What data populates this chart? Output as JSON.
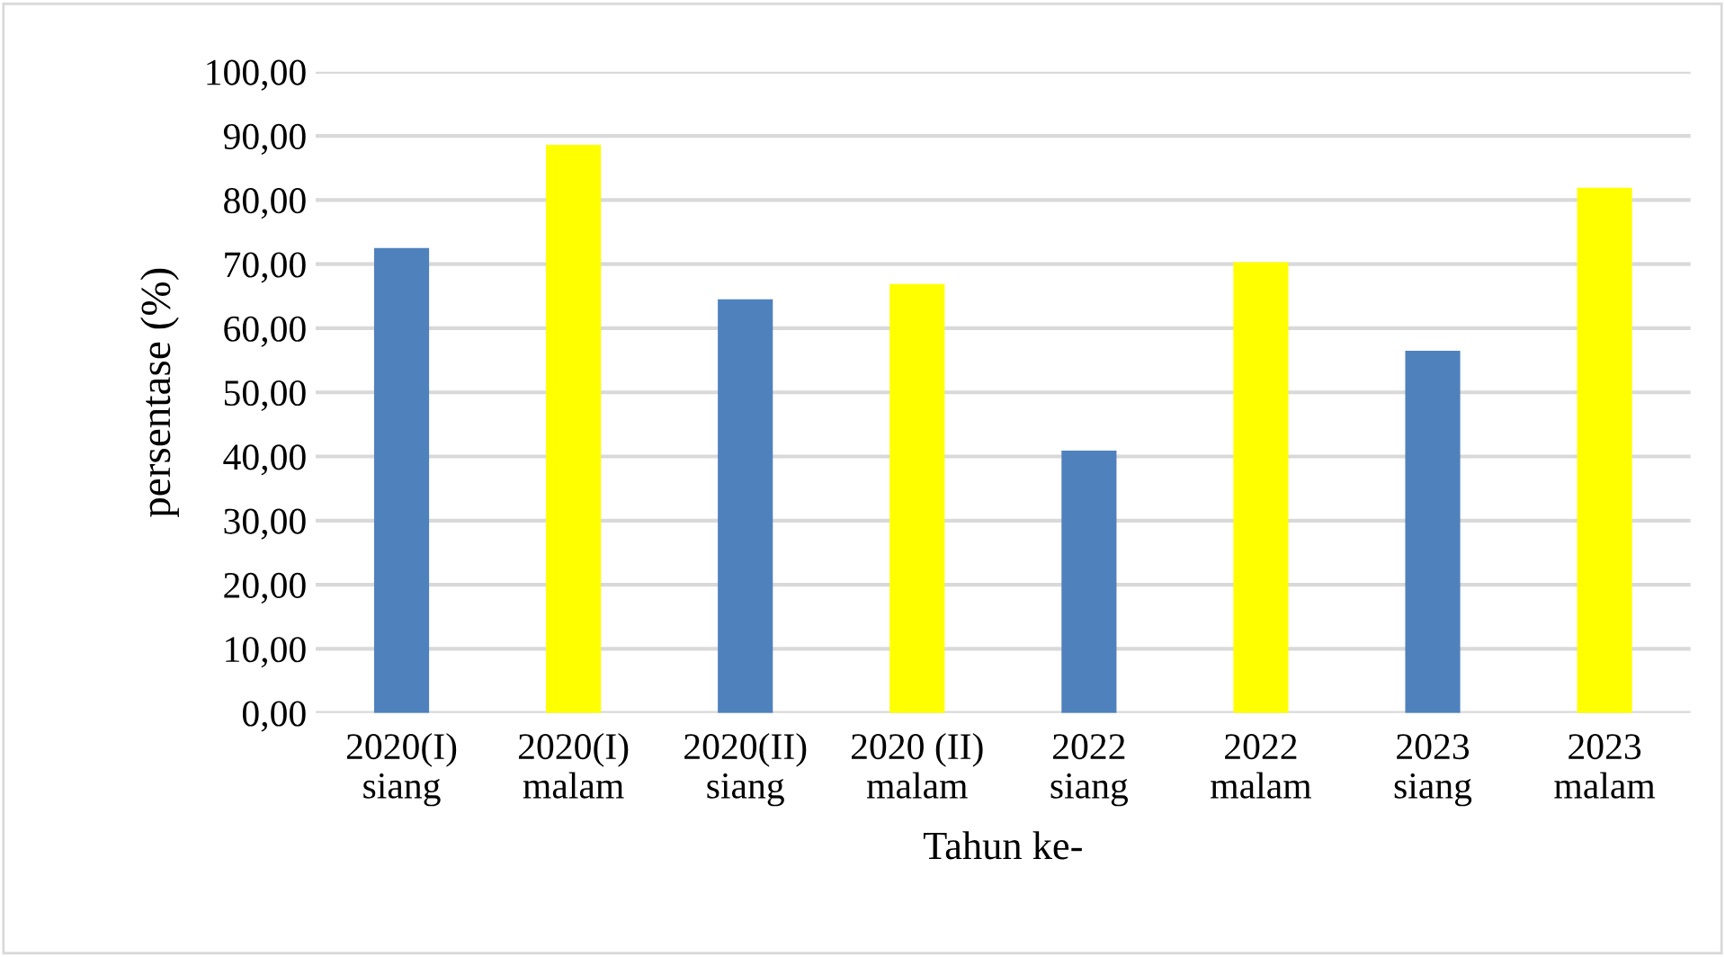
{
  "chart_data": {
    "type": "bar",
    "xlabel": "Tahun ke-",
    "ylabel": "persentase (%)",
    "categories": [
      "2020(I)\nsiang",
      "2020(I)\nmalam",
      "2020(II)\nsiang",
      "2020 (II)\nmalam",
      "2022\nsiang",
      "2022\nmalam",
      "2023\nsiang",
      "2023\nmalam"
    ],
    "values": [
      72.5,
      88.6,
      64.5,
      66.9,
      40.9,
      70.3,
      56.5,
      81.9
    ],
    "colors": [
      "#4f81bd",
      "#ffff00",
      "#4f81bd",
      "#ffff00",
      "#4f81bd",
      "#ffff00",
      "#4f81bd",
      "#ffff00"
    ],
    "ylim": [
      0,
      100
    ],
    "yticks": [
      {
        "value": 0,
        "label": "0,00"
      },
      {
        "value": 10,
        "label": "10,00"
      },
      {
        "value": 20,
        "label": "20,00"
      },
      {
        "value": 30,
        "label": "30,00"
      },
      {
        "value": 40,
        "label": "40,00"
      },
      {
        "value": 50,
        "label": "50,00"
      },
      {
        "value": 60,
        "label": "60,00"
      },
      {
        "value": 70,
        "label": "70,00"
      },
      {
        "value": 80,
        "label": "80,00"
      },
      {
        "value": 90,
        "label": "90,00"
      },
      {
        "value": 100,
        "label": "100,00"
      }
    ],
    "grid": "y",
    "legend": false
  }
}
